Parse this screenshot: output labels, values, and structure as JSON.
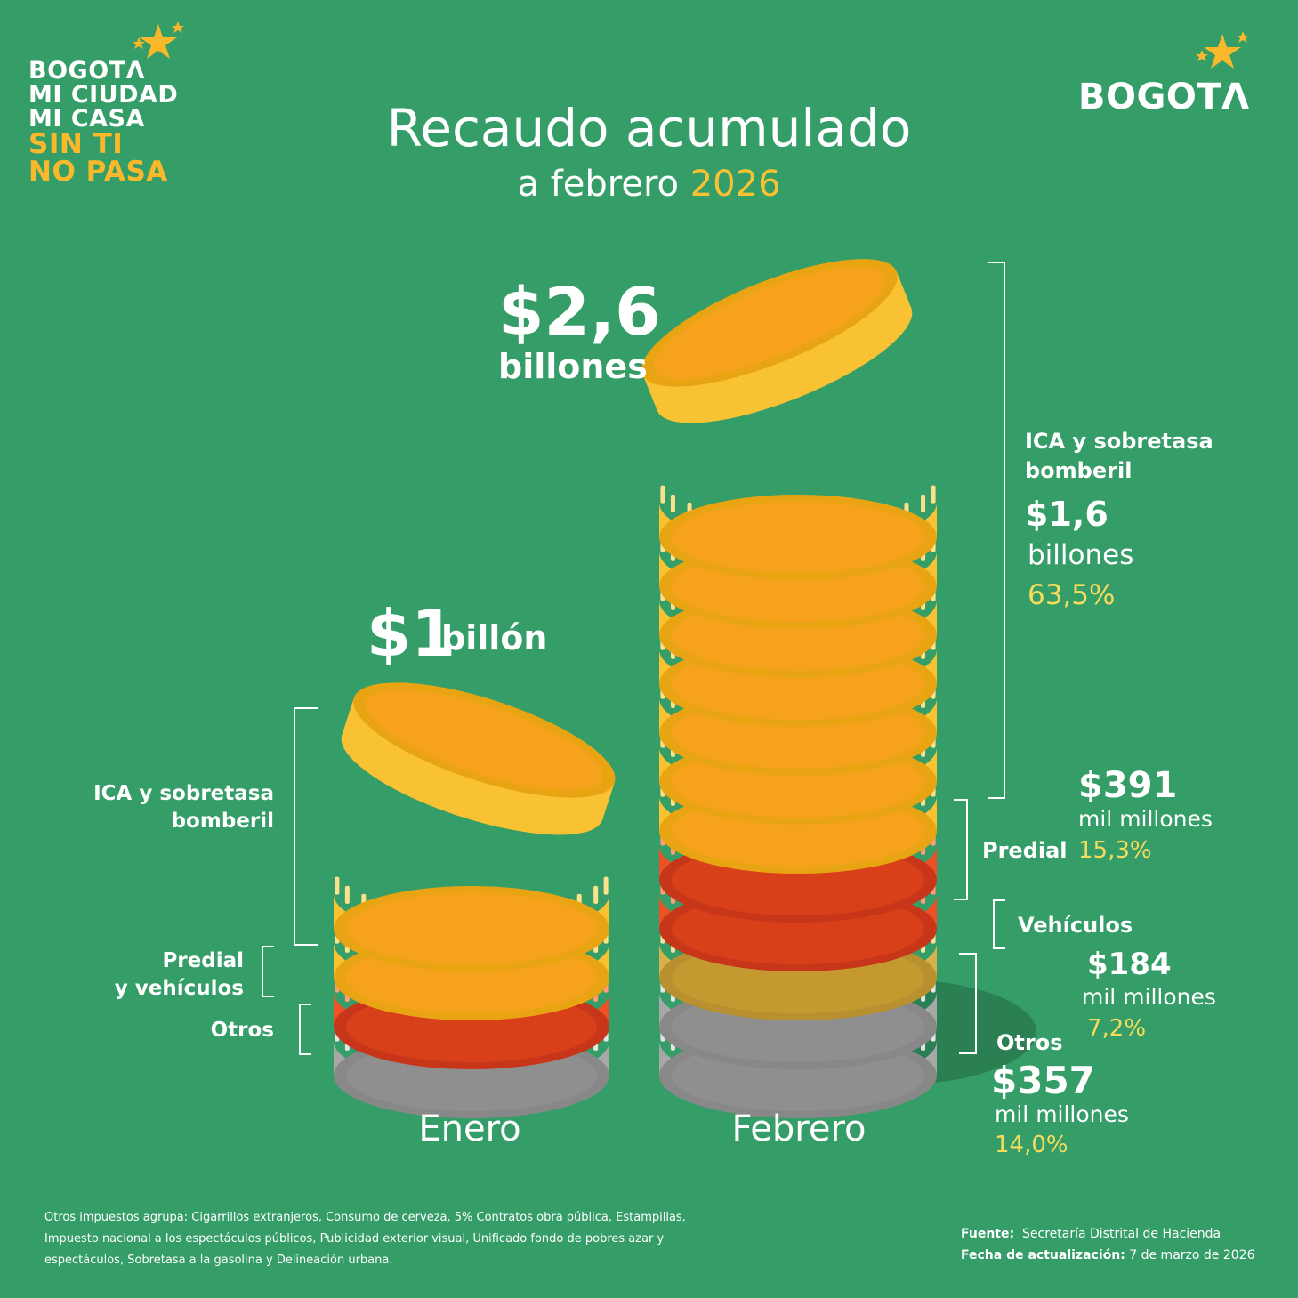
{
  "logo_left": {
    "line1": "BOGOTΛ",
    "line2": "MI CIUDAD",
    "line3": "MI CASA",
    "line4": "SIN TI",
    "line5": "NO PASA"
  },
  "logo_right": "BOGOTΛ",
  "title": "Recaudo acumulado",
  "subtitle": {
    "prefix": "a febrero",
    "year": "2026"
  },
  "colors": {
    "background": "#359d67",
    "ica": "#f9c233",
    "predial": "#ee5126",
    "vehiculos": "#d6b24a",
    "otros": "#a8a8a8",
    "highlight": "#f6dc5c"
  },
  "chart_data": {
    "type": "bar",
    "categories": [
      "Enero",
      "Febrero"
    ],
    "totals": [
      {
        "amount": "$1",
        "unit": "billón"
      },
      {
        "amount": "$2,6",
        "unit": "billones"
      }
    ],
    "enero_segments": [
      {
        "label1": "ICA y sobretasa",
        "label2": "bomberil",
        "coins": 3
      },
      {
        "label1": "Predial",
        "label2": "y vehículos",
        "coins": 1
      },
      {
        "label1": "Otros",
        "coins": 1
      }
    ],
    "febrero_segments": [
      {
        "name": "ICA y sobretasa bomberil",
        "name1": "ICA y sobretasa",
        "name2": "bomberil",
        "amount": "$1,6",
        "unit": "billones",
        "share": "63,5%",
        "coins": 8
      },
      {
        "name": "Predial",
        "amount": "$391",
        "unit": "mil millones",
        "share": "15,3%",
        "coins": 2
      },
      {
        "name": "Vehículos",
        "amount": "$184",
        "unit": "mil millones",
        "share": "7,2%",
        "coins": 1
      },
      {
        "name": "Otros",
        "amount": "$357",
        "unit": "mil millones",
        "share": "14,0%",
        "coins": 2
      }
    ]
  },
  "footnote": {
    "line1": "Otros impuestos agrupa: Cigarrillos extranjeros, Consumo de cerveza, 5% Contratos obra pública, Estampillas,",
    "line2": "Impuesto nacional a los espectáculos públicos, Publicidad exterior visual, Unificado fondo de pobres azar y",
    "line3": "espectáculos, Sobretasa a la gasolina y Delineación urbana."
  },
  "source": {
    "label": "Fuente:",
    "value": "Secretaría Distrital de Hacienda",
    "date_label": "Fecha de actualización:",
    "date_value": "7 de marzo de 2026"
  }
}
